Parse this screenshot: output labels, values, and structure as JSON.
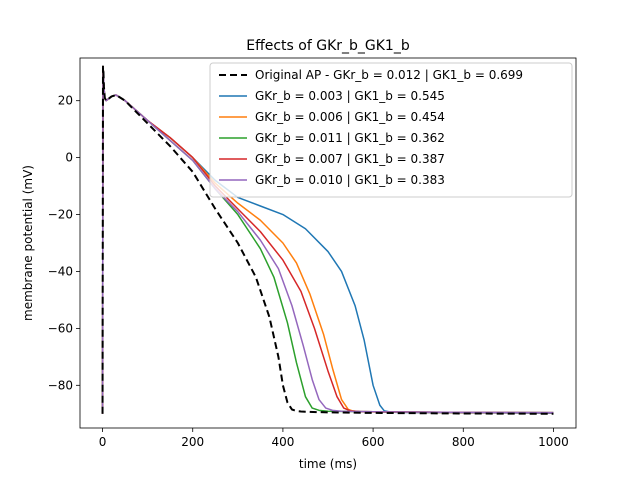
{
  "chart_data": {
    "type": "line",
    "title": "Effects of GKr_b_GK1_b",
    "xlabel": "time (ms)",
    "ylabel": "membrane potential (mV)",
    "xlim": [
      -50,
      1050
    ],
    "ylim": [
      -95,
      35
    ],
    "xticks": [
      0,
      200,
      400,
      600,
      800,
      1000
    ],
    "yticks": [
      -80,
      -60,
      -40,
      -20,
      0,
      20
    ],
    "xtick_labels": [
      "0",
      "200",
      "400",
      "600",
      "800",
      "1000"
    ],
    "ytick_labels": [
      "−80",
      "−60",
      "−40",
      "−20",
      "0",
      "20"
    ],
    "grid": false,
    "legend_position": "top-right",
    "series": [
      {
        "name": "GKr_b = 0.003 | GK1_b = 0.545",
        "color": "#1f77b4",
        "dashed": false,
        "x": [
          0,
          1,
          2,
          3,
          5,
          8,
          12,
          20,
          30,
          50,
          100,
          150,
          200,
          250,
          300,
          350,
          400,
          450,
          500,
          530,
          560,
          580,
          600,
          615,
          625,
          635,
          650,
          700,
          800,
          1000
        ],
        "y": [
          -90,
          32,
          30,
          25,
          21,
          20,
          20.5,
          21.5,
          22,
          20,
          13,
          7,
          0,
          -8,
          -14,
          -17,
          -20,
          -25,
          -33,
          -40,
          -52,
          -64,
          -80,
          -87,
          -89,
          -89.3,
          -89.5,
          -89.6,
          -89.7,
          -89.8
        ]
      },
      {
        "name": "GKr_b = 0.006 | GK1_b = 0.454",
        "color": "#ff7f0e",
        "dashed": false,
        "x": [
          0,
          1,
          2,
          3,
          5,
          8,
          12,
          20,
          30,
          50,
          100,
          150,
          200,
          250,
          300,
          350,
          400,
          430,
          460,
          490,
          510,
          530,
          545,
          555,
          570,
          600,
          700,
          800,
          1000
        ],
        "y": [
          -90,
          32,
          30,
          25,
          21,
          20,
          20.5,
          21.5,
          22,
          20,
          13,
          7,
          0,
          -9,
          -16,
          -22,
          -30,
          -37,
          -48,
          -62,
          -74,
          -85,
          -88.5,
          -89,
          -89.3,
          -89.4,
          -89.5,
          -89.6,
          -89.7
        ]
      },
      {
        "name": "GKr_b = 0.011 | GK1_b = 0.362",
        "color": "#2ca02c",
        "dashed": false,
        "x": [
          0,
          1,
          2,
          3,
          5,
          8,
          12,
          20,
          30,
          50,
          100,
          150,
          200,
          250,
          300,
          350,
          380,
          410,
          430,
          450,
          465,
          480,
          500,
          600,
          800,
          1000
        ],
        "y": [
          -90,
          32,
          30,
          25,
          21,
          20,
          20.5,
          21.5,
          22,
          20,
          13,
          6,
          -1,
          -11,
          -20,
          -32,
          -42,
          -58,
          -72,
          -84,
          -88,
          -88.8,
          -89.1,
          -89.3,
          -89.5,
          -89.6
        ]
      },
      {
        "name": "GKr_b = 0.007 | GK1_b = 0.387",
        "color": "#d62728",
        "dashed": false,
        "x": [
          0,
          1,
          2,
          3,
          5,
          8,
          12,
          20,
          30,
          50,
          100,
          150,
          200,
          250,
          300,
          350,
          400,
          440,
          470,
          500,
          520,
          535,
          550,
          570,
          600,
          700,
          800,
          1000
        ],
        "y": [
          -90,
          32,
          30,
          25,
          21,
          20,
          20.5,
          21.5,
          22,
          20,
          13,
          7,
          0,
          -10,
          -18,
          -26,
          -36,
          -47,
          -60,
          -75,
          -84,
          -88,
          -89,
          -89.2,
          -89.3,
          -89.4,
          -89.5,
          -89.6
        ]
      },
      {
        "name": "GKr_b = 0.010 | GK1_b = 0.383",
        "color": "#9467bd",
        "dashed": false,
        "x": [
          0,
          1,
          2,
          3,
          5,
          8,
          12,
          20,
          30,
          50,
          100,
          150,
          200,
          250,
          300,
          350,
          390,
          420,
          445,
          465,
          480,
          495,
          510,
          530,
          600,
          800,
          1000
        ],
        "y": [
          -90,
          32,
          30,
          25,
          21,
          20,
          20.5,
          21.5,
          22,
          20,
          13,
          6,
          -1,
          -11,
          -19,
          -29,
          -39,
          -52,
          -66,
          -78,
          -85,
          -88,
          -88.8,
          -89.1,
          -89.3,
          -89.5,
          -89.6
        ]
      },
      {
        "name": "Original AP - GKr_b = 0.012 | GK1_b = 0.699",
        "color": "#000000",
        "dashed": true,
        "x": [
          0,
          1,
          2,
          3,
          5,
          8,
          12,
          20,
          30,
          50,
          100,
          150,
          200,
          250,
          300,
          340,
          370,
          390,
          400,
          410,
          420,
          430,
          440,
          450,
          500,
          600,
          700,
          800,
          1000
        ],
        "y": [
          -90,
          32,
          30,
          25,
          21,
          20,
          20.5,
          21.5,
          22,
          20,
          12,
          4,
          -5,
          -18,
          -30,
          -42,
          -56,
          -70,
          -80,
          -86,
          -88.5,
          -89,
          -89.2,
          -89.3,
          -89.5,
          -89.7,
          -89.8,
          -89.9,
          -90
        ]
      }
    ],
    "legend_order": [
      5,
      0,
      1,
      2,
      3,
      4
    ]
  }
}
